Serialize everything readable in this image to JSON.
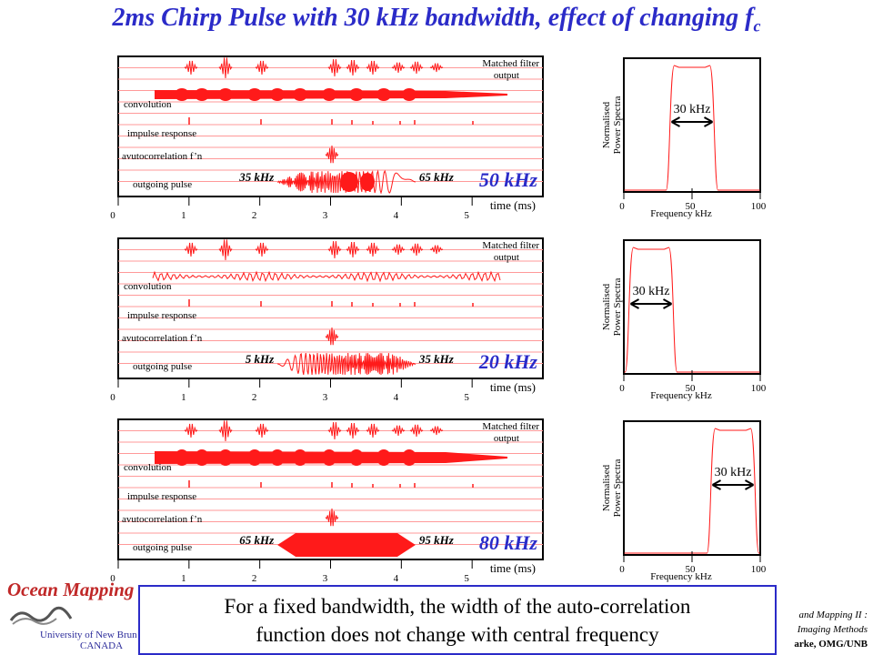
{
  "title": {
    "main": "2ms Chirp Pulse with 30 kHz bandwidth, effect of changing f",
    "sub": "c"
  },
  "panels": [
    {
      "fc_label": "50 kHz",
      "start_label": "35 kHz",
      "end_label": "65 kHz",
      "spectrum_center_khz": 50,
      "spectrum_bandwidth_khz": 30,
      "pulse_style": "dense-modulated"
    },
    {
      "fc_label": "20 kHz",
      "start_label": "5 kHz",
      "end_label": "35 kHz",
      "spectrum_center_khz": 20,
      "spectrum_bandwidth_khz": 30,
      "pulse_style": "chirp"
    },
    {
      "fc_label": "80 kHz",
      "start_label": "65 kHz",
      "end_label": "95 kHz",
      "spectrum_center_khz": 80,
      "spectrum_bandwidth_khz": 30,
      "pulse_style": "solid"
    }
  ],
  "trace_labels": {
    "matched_filter_1": "Matched filter",
    "matched_filter_2": "output",
    "convolution": "convolution",
    "impulse": "impulse response",
    "autocorr": "avutocorrelation f’n",
    "outgoing": "outgoing pulse"
  },
  "time_axis": {
    "label": "time (ms)",
    "ticks": [
      "0",
      "1",
      "2",
      "3",
      "4",
      "5"
    ],
    "range_ms": [
      0,
      6
    ]
  },
  "spectrum_axis": {
    "xlabel": "Frequency kHz",
    "ylabel_1": "Normalised",
    "ylabel_2": "Power Spectra",
    "ticks": [
      "0",
      "50",
      "100"
    ],
    "range_khz": [
      0,
      100
    ],
    "bw_label": "30 kHz"
  },
  "caption": {
    "line1": "For a fixed bandwidth, the width of the auto-correlation",
    "line2": "function does not change with central frequency"
  },
  "footer": {
    "logo_title": "Ocean Mapping",
    "logo_univ1": "University of New Brun",
    "logo_univ2": "CANADA",
    "course1": "and Mapping II :",
    "course2": "Imaging Methods",
    "author": "arke, OMG/UNB"
  },
  "colors": {
    "title": "#2b2bc8",
    "trace": "#ff1a1a",
    "lines": "#ff9999",
    "caption_border": "#2b2bc8",
    "logo": "#c02828"
  }
}
